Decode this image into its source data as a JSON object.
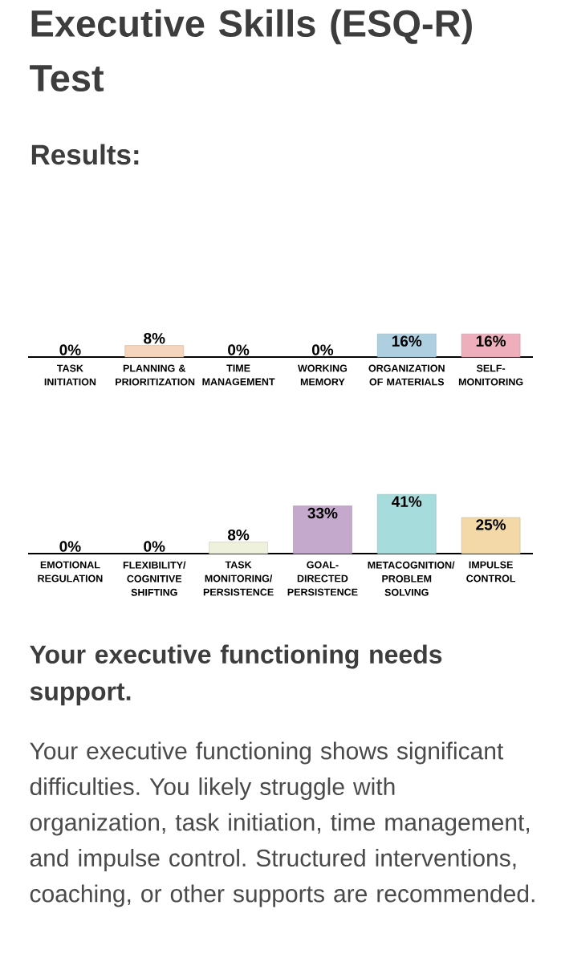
{
  "chart_data": [
    {
      "type": "bar",
      "title": "Executive Skills (ESQ-R) Test",
      "subtitle": "Results:",
      "categories": [
        "TASK INITIATION",
        "PLANNING & PRIORITIZATION",
        "TIME MANAGEMENT",
        "WORKING MEMORY",
        "ORGANIZATION OF MATERIALS",
        "SELF-MONITORING"
      ],
      "values": [
        0,
        8,
        0,
        0,
        16,
        16
      ],
      "value_labels": [
        "0%",
        "8%",
        "0%",
        "0%",
        "16%",
        "16%"
      ],
      "colors": [
        null,
        "#f5d5bb",
        null,
        null,
        "#aecfe0",
        "#eeaebb"
      ]
    },
    {
      "type": "bar",
      "categories": [
        "EMOTIONAL REGULATION",
        "FLEXIBILITY/ COGNITIVE SHIFTING",
        "TASK MONITORING/ PERSISTENCE",
        "GOAL-DIRECTED PERSISTENCE",
        "METACOGNITION/ PROBLEM SOLVING",
        "IMPULSE CONTROL"
      ],
      "values": [
        0,
        0,
        8,
        33,
        41,
        25
      ],
      "value_labels": [
        "0%",
        "0%",
        "8%",
        "33%",
        "41%",
        "25%"
      ],
      "colors": [
        null,
        null,
        "#eef1dc",
        "#c4a9cc",
        "#a7dcdc",
        "#f3d9a8"
      ],
      "annotations": [
        "Your executive functioning needs support.",
        "Your executive functioning shows significant difficulties. You likely struggle with organization, task initiation, time management, and impulse control. Structured interventions, coaching, or other supports are recommended."
      ]
    }
  ]
}
